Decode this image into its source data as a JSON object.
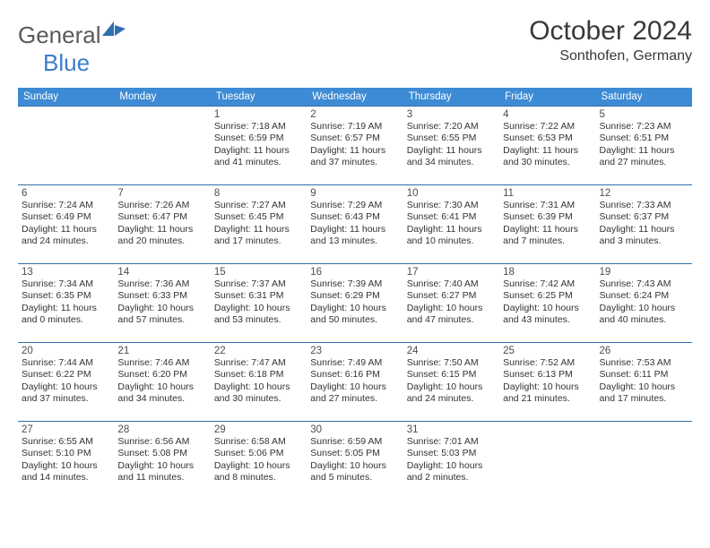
{
  "logo": {
    "text1": "General",
    "text2": "Blue"
  },
  "title": "October 2024",
  "location": "Sonthofen, Germany",
  "colors": {
    "header_bg": "#3d8bd4",
    "header_text": "#ffffff",
    "border": "#2f6fa8",
    "logo_gray": "#5a5a5a",
    "logo_blue": "#3d7cc9",
    "body_text": "#333333"
  },
  "dayNames": [
    "Sunday",
    "Monday",
    "Tuesday",
    "Wednesday",
    "Thursday",
    "Friday",
    "Saturday"
  ],
  "weeks": [
    [
      null,
      null,
      {
        "d": "1",
        "sr": "7:18 AM",
        "ss": "6:59 PM",
        "dl": "11 hours and 41 minutes."
      },
      {
        "d": "2",
        "sr": "7:19 AM",
        "ss": "6:57 PM",
        "dl": "11 hours and 37 minutes."
      },
      {
        "d": "3",
        "sr": "7:20 AM",
        "ss": "6:55 PM",
        "dl": "11 hours and 34 minutes."
      },
      {
        "d": "4",
        "sr": "7:22 AM",
        "ss": "6:53 PM",
        "dl": "11 hours and 30 minutes."
      },
      {
        "d": "5",
        "sr": "7:23 AM",
        "ss": "6:51 PM",
        "dl": "11 hours and 27 minutes."
      }
    ],
    [
      {
        "d": "6",
        "sr": "7:24 AM",
        "ss": "6:49 PM",
        "dl": "11 hours and 24 minutes."
      },
      {
        "d": "7",
        "sr": "7:26 AM",
        "ss": "6:47 PM",
        "dl": "11 hours and 20 minutes."
      },
      {
        "d": "8",
        "sr": "7:27 AM",
        "ss": "6:45 PM",
        "dl": "11 hours and 17 minutes."
      },
      {
        "d": "9",
        "sr": "7:29 AM",
        "ss": "6:43 PM",
        "dl": "11 hours and 13 minutes."
      },
      {
        "d": "10",
        "sr": "7:30 AM",
        "ss": "6:41 PM",
        "dl": "11 hours and 10 minutes."
      },
      {
        "d": "11",
        "sr": "7:31 AM",
        "ss": "6:39 PM",
        "dl": "11 hours and 7 minutes."
      },
      {
        "d": "12",
        "sr": "7:33 AM",
        "ss": "6:37 PM",
        "dl": "11 hours and 3 minutes."
      }
    ],
    [
      {
        "d": "13",
        "sr": "7:34 AM",
        "ss": "6:35 PM",
        "dl": "11 hours and 0 minutes."
      },
      {
        "d": "14",
        "sr": "7:36 AM",
        "ss": "6:33 PM",
        "dl": "10 hours and 57 minutes."
      },
      {
        "d": "15",
        "sr": "7:37 AM",
        "ss": "6:31 PM",
        "dl": "10 hours and 53 minutes."
      },
      {
        "d": "16",
        "sr": "7:39 AM",
        "ss": "6:29 PM",
        "dl": "10 hours and 50 minutes."
      },
      {
        "d": "17",
        "sr": "7:40 AM",
        "ss": "6:27 PM",
        "dl": "10 hours and 47 minutes."
      },
      {
        "d": "18",
        "sr": "7:42 AM",
        "ss": "6:25 PM",
        "dl": "10 hours and 43 minutes."
      },
      {
        "d": "19",
        "sr": "7:43 AM",
        "ss": "6:24 PM",
        "dl": "10 hours and 40 minutes."
      }
    ],
    [
      {
        "d": "20",
        "sr": "7:44 AM",
        "ss": "6:22 PM",
        "dl": "10 hours and 37 minutes."
      },
      {
        "d": "21",
        "sr": "7:46 AM",
        "ss": "6:20 PM",
        "dl": "10 hours and 34 minutes."
      },
      {
        "d": "22",
        "sr": "7:47 AM",
        "ss": "6:18 PM",
        "dl": "10 hours and 30 minutes."
      },
      {
        "d": "23",
        "sr": "7:49 AM",
        "ss": "6:16 PM",
        "dl": "10 hours and 27 minutes."
      },
      {
        "d": "24",
        "sr": "7:50 AM",
        "ss": "6:15 PM",
        "dl": "10 hours and 24 minutes."
      },
      {
        "d": "25",
        "sr": "7:52 AM",
        "ss": "6:13 PM",
        "dl": "10 hours and 21 minutes."
      },
      {
        "d": "26",
        "sr": "7:53 AM",
        "ss": "6:11 PM",
        "dl": "10 hours and 17 minutes."
      }
    ],
    [
      {
        "d": "27",
        "sr": "6:55 AM",
        "ss": "5:10 PM",
        "dl": "10 hours and 14 minutes."
      },
      {
        "d": "28",
        "sr": "6:56 AM",
        "ss": "5:08 PM",
        "dl": "10 hours and 11 minutes."
      },
      {
        "d": "29",
        "sr": "6:58 AM",
        "ss": "5:06 PM",
        "dl": "10 hours and 8 minutes."
      },
      {
        "d": "30",
        "sr": "6:59 AM",
        "ss": "5:05 PM",
        "dl": "10 hours and 5 minutes."
      },
      {
        "d": "31",
        "sr": "7:01 AM",
        "ss": "5:03 PM",
        "dl": "10 hours and 2 minutes."
      },
      null,
      null
    ]
  ]
}
